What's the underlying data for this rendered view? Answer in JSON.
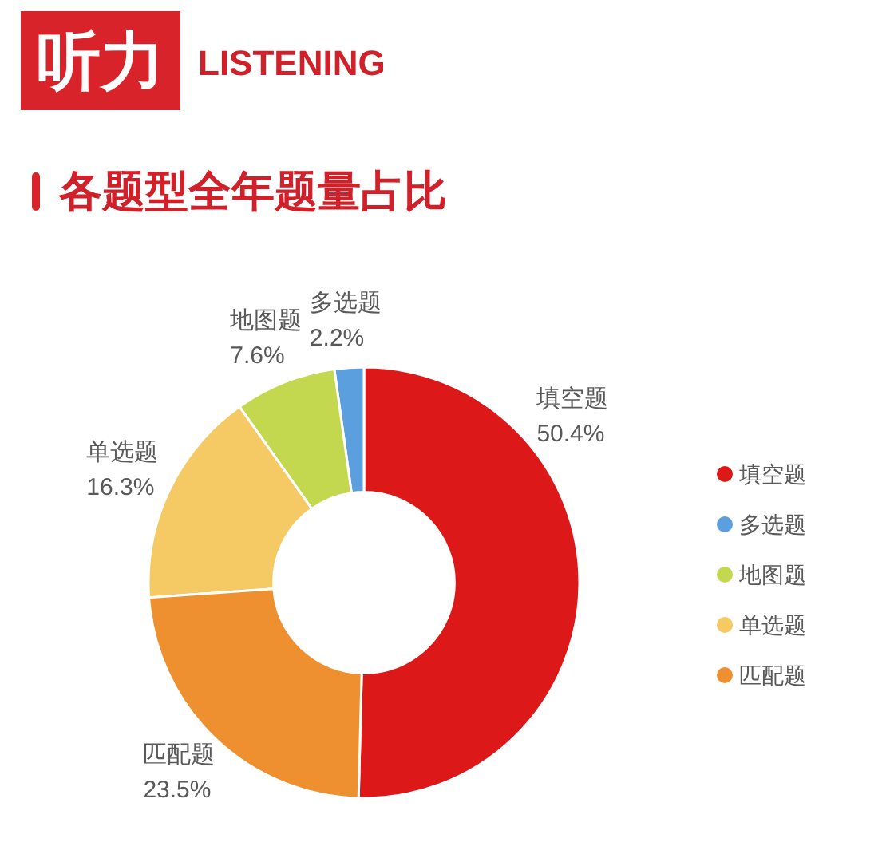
{
  "chart_data": {
    "type": "donut",
    "title": "听力 LISTENING",
    "subtitle": "各题型全年题量占比",
    "categories": [
      "填空题",
      "多选题",
      "地图题",
      "单选题",
      "匹配题"
    ],
    "values": [
      50.4,
      2.2,
      7.6,
      16.3,
      23.5
    ],
    "value_labels": [
      "50.4%",
      "2.2%",
      "7.6%",
      "16.3%",
      "23.5%"
    ],
    "colors": [
      "#dc1818",
      "#5b9fdf",
      "#c3d84f",
      "#f5c964",
      "#ee9030"
    ],
    "legend": "right"
  }
}
